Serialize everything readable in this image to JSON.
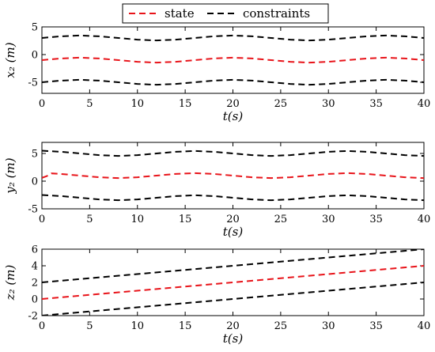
{
  "legend": {
    "entries": [
      {
        "label": "state",
        "color": "#e8141a"
      },
      {
        "label": "constraints",
        "color": "#000000"
      }
    ],
    "placement": "top-center"
  },
  "chart_data": [
    {
      "type": "line",
      "xlabel": "t(s)",
      "ylabel": "x₂ (m)",
      "xlim": [
        0,
        40
      ],
      "ylim": [
        -7,
        5
      ],
      "xticks": [
        "0",
        "5",
        "10",
        "15",
        "20",
        "25",
        "30",
        "35",
        "40"
      ],
      "yticks": [
        "-5",
        "0",
        "5"
      ],
      "grid": false,
      "series": [
        {
          "name": "state",
          "color": "#e8141a",
          "dash": "dashed",
          "x": [
            0,
            2,
            4,
            6,
            8,
            10,
            12,
            14,
            16,
            18,
            20,
            22,
            24,
            26,
            28,
            30,
            32,
            34,
            36,
            38,
            40
          ],
          "y": [
            -1.0,
            -0.7,
            -0.55,
            -0.7,
            -1.0,
            -1.3,
            -1.45,
            -1.3,
            -1.0,
            -0.7,
            -0.55,
            -0.7,
            -1.0,
            -1.3,
            -1.45,
            -1.3,
            -1.0,
            -0.7,
            -0.55,
            -0.7,
            -1.0
          ]
        },
        {
          "name": "constraints",
          "color": "#000000",
          "dash": "dashed",
          "x": [
            0,
            2,
            4,
            6,
            8,
            10,
            12,
            14,
            16,
            18,
            20,
            22,
            24,
            26,
            28,
            30,
            32,
            34,
            36,
            38,
            40
          ],
          "y": [
            3.0,
            3.3,
            3.45,
            3.3,
            3.0,
            2.7,
            2.55,
            2.7,
            3.0,
            3.3,
            3.45,
            3.3,
            3.0,
            2.7,
            2.55,
            2.7,
            3.0,
            3.3,
            3.45,
            3.3,
            3.0
          ]
        },
        {
          "name": "constraints",
          "color": "#000000",
          "dash": "dashed",
          "x": [
            0,
            2,
            4,
            6,
            8,
            10,
            12,
            14,
            16,
            18,
            20,
            22,
            24,
            26,
            28,
            30,
            32,
            34,
            36,
            38,
            40
          ],
          "y": [
            -5.0,
            -4.7,
            -4.55,
            -4.7,
            -5.0,
            -5.3,
            -5.45,
            -5.3,
            -5.0,
            -4.7,
            -4.55,
            -4.7,
            -5.0,
            -5.3,
            -5.45,
            -5.3,
            -5.0,
            -4.7,
            -4.55,
            -4.7,
            -5.0
          ]
        }
      ]
    },
    {
      "type": "line",
      "xlabel": "t(s)",
      "ylabel": "y₂ (m)",
      "xlim": [
        0,
        40
      ],
      "ylim": [
        -5,
        7
      ],
      "xticks": [
        "0",
        "5",
        "10",
        "15",
        "20",
        "25",
        "30",
        "35",
        "40"
      ],
      "yticks": [
        "-5",
        "0",
        "5"
      ],
      "grid": false,
      "series": [
        {
          "name": "state",
          "color": "#e8141a",
          "dash": "dashed",
          "x": [
            0,
            0.5,
            1,
            2,
            4,
            6,
            8,
            10,
            12,
            14,
            16,
            18,
            20,
            22,
            24,
            26,
            28,
            30,
            32,
            34,
            36,
            38,
            40
          ],
          "y": [
            0.6,
            0.9,
            1.4,
            1.3,
            1.0,
            0.7,
            0.55,
            0.7,
            1.0,
            1.3,
            1.45,
            1.3,
            1.0,
            0.7,
            0.55,
            0.7,
            1.0,
            1.3,
            1.45,
            1.3,
            1.0,
            0.7,
            0.55
          ]
        },
        {
          "name": "constraints",
          "color": "#000000",
          "dash": "dashed",
          "x": [
            0,
            2,
            4,
            6,
            8,
            10,
            12,
            14,
            16,
            18,
            20,
            22,
            24,
            26,
            28,
            30,
            32,
            34,
            36,
            38,
            40
          ],
          "y": [
            5.5,
            5.3,
            5.0,
            4.7,
            4.55,
            4.7,
            5.0,
            5.3,
            5.45,
            5.3,
            5.0,
            4.7,
            4.55,
            4.7,
            5.0,
            5.3,
            5.45,
            5.3,
            5.0,
            4.7,
            4.55
          ]
        },
        {
          "name": "constraints",
          "color": "#000000",
          "dash": "dashed",
          "x": [
            0,
            2,
            4,
            6,
            8,
            10,
            12,
            14,
            16,
            18,
            20,
            22,
            24,
            26,
            28,
            30,
            32,
            34,
            36,
            38,
            40
          ],
          "y": [
            -2.5,
            -2.7,
            -3.0,
            -3.3,
            -3.45,
            -3.3,
            -3.0,
            -2.7,
            -2.55,
            -2.7,
            -3.0,
            -3.3,
            -3.45,
            -3.3,
            -3.0,
            -2.7,
            -2.55,
            -2.7,
            -3.0,
            -3.3,
            -3.45
          ]
        }
      ]
    },
    {
      "type": "line",
      "xlabel": "t(s)",
      "ylabel": "z₂ (m)",
      "xlim": [
        0,
        40
      ],
      "ylim": [
        -2,
        6
      ],
      "xticks": [
        "0",
        "5",
        "10",
        "15",
        "20",
        "25",
        "30",
        "35",
        "40"
      ],
      "yticks": [
        "-2",
        "0",
        "2",
        "4",
        "6"
      ],
      "grid": false,
      "series": [
        {
          "name": "state",
          "color": "#e8141a",
          "dash": "dashed",
          "x": [
            0,
            40
          ],
          "y": [
            0,
            4
          ]
        },
        {
          "name": "constraints",
          "color": "#000000",
          "dash": "dashed",
          "x": [
            0,
            40
          ],
          "y": [
            2,
            6
          ]
        },
        {
          "name": "constraints",
          "color": "#000000",
          "dash": "dashed",
          "x": [
            0,
            40
          ],
          "y": [
            -2,
            2
          ]
        }
      ]
    }
  ]
}
